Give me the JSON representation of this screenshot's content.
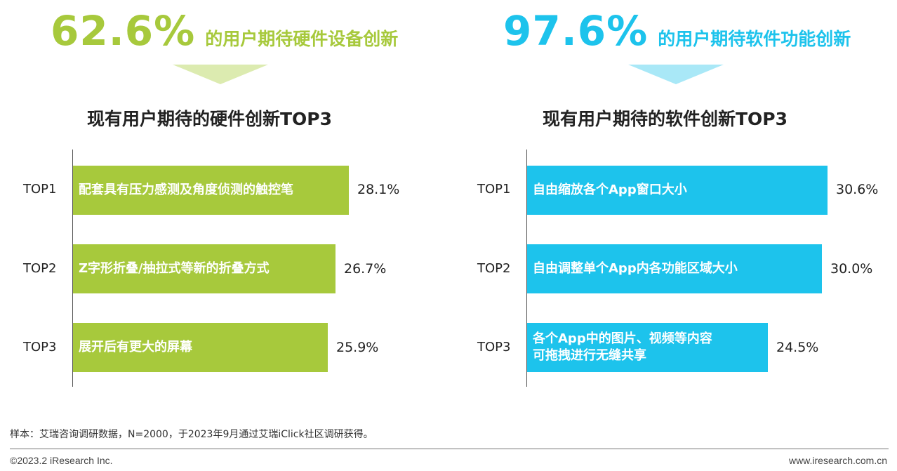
{
  "colors": {
    "green": "#a7c93c",
    "green_light": "#dcebb0",
    "blue": "#1dc3ec",
    "blue_light": "#a9e8f7"
  },
  "chart_data": [
    {
      "type": "bar",
      "orientation": "horizontal",
      "headline_value": "62.6%",
      "headline_text": "的用户期待硬件设备创新",
      "title": "现有用户期待的硬件创新TOP3",
      "categories": [
        "TOP1",
        "TOP2",
        "TOP3"
      ],
      "series": [
        {
          "labels": [
            "配套具有压力感测及角度侦测的触控笔",
            "Z字形折叠/抽拉式等新的折叠方式",
            "展开后有更大的屏幕"
          ],
          "values": [
            28.1,
            26.7,
            25.9
          ],
          "value_labels": [
            "28.1%",
            "26.7%",
            "25.9%"
          ]
        }
      ],
      "xlim": [
        0,
        40
      ],
      "grid": false
    },
    {
      "type": "bar",
      "orientation": "horizontal",
      "headline_value": "97.6%",
      "headline_text": "的用户期待软件功能创新",
      "title": "现有用户期待的软件创新TOP3",
      "categories": [
        "TOP1",
        "TOP2",
        "TOP3"
      ],
      "series": [
        {
          "labels": [
            "自由缩放各个App窗口大小",
            "自由调整单个App内各功能区域大小",
            "各个App中的图片、视频等内容\n可拖拽进行无缝共享"
          ],
          "values": [
            30.6,
            30.0,
            24.5
          ],
          "value_labels": [
            "30.6%",
            "30.0%",
            "24.5%"
          ]
        }
      ],
      "xlim": [
        0,
        40
      ],
      "grid": false
    }
  ],
  "footer": {
    "note": "样本：艾瑞咨询调研数据，N=2000，于2023年9月通过艾瑞iClick社区调研获得。",
    "copyright": "©2023.2 iResearch Inc.",
    "site": "www.iresearch.com.cn"
  }
}
